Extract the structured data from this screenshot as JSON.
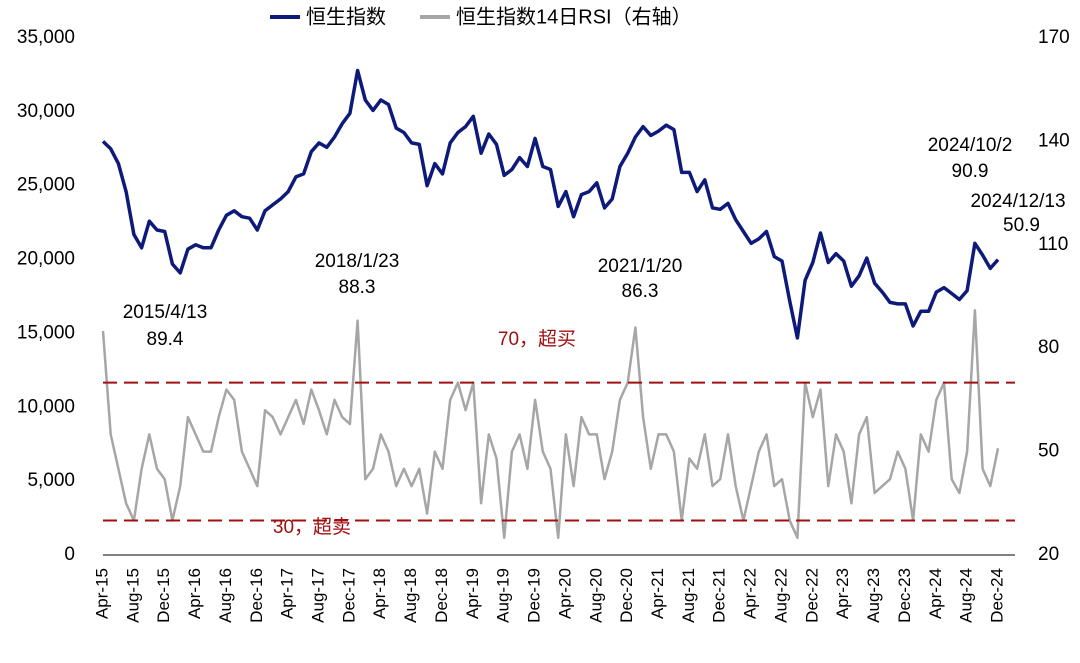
{
  "chart_data": {
    "type": "line",
    "categories": [
      "Apr-15",
      null,
      null,
      null,
      "Aug-15",
      null,
      null,
      null,
      "Dec-15",
      null,
      null,
      null,
      "Apr-16",
      null,
      null,
      null,
      "Aug-16",
      null,
      null,
      null,
      "Dec-16",
      null,
      null,
      null,
      "Apr-17",
      null,
      null,
      null,
      "Aug-17",
      null,
      null,
      null,
      "Dec-17",
      null,
      null,
      null,
      "Apr-18",
      null,
      null,
      null,
      "Aug-18",
      null,
      null,
      null,
      "Dec-18",
      null,
      null,
      null,
      "Apr-19",
      null,
      null,
      null,
      "Aug-19",
      null,
      null,
      null,
      "Dec-19",
      null,
      null,
      null,
      "Apr-20",
      null,
      null,
      null,
      "Aug-20",
      null,
      null,
      null,
      "Dec-20",
      null,
      null,
      null,
      "Apr-21",
      null,
      null,
      null,
      "Aug-21",
      null,
      null,
      null,
      "Dec-21",
      null,
      null,
      null,
      "Apr-22",
      null,
      null,
      null,
      "Aug-22",
      null,
      null,
      null,
      "Dec-22",
      null,
      null,
      null,
      "Apr-23",
      null,
      null,
      null,
      "Aug-23",
      null,
      null,
      null,
      "Dec-23",
      null,
      null,
      null,
      "Apr-24",
      null,
      null,
      null,
      "Aug-24",
      null,
      null,
      null,
      "Dec-24"
    ],
    "series": [
      {
        "name": "恒生指数14日RSI（右轴）",
        "color": "#a6a6a6",
        "axis": "y2",
        "values": [
          85,
          55,
          45,
          35,
          30,
          45,
          55,
          45,
          42,
          30,
          40,
          60,
          55,
          50,
          50,
          60,
          68,
          65,
          50,
          45,
          40,
          62,
          60,
          55,
          60,
          65,
          58,
          68,
          62,
          55,
          65,
          60,
          58,
          88,
          42,
          45,
          55,
          50,
          40,
          45,
          40,
          45,
          32,
          50,
          45,
          65,
          70,
          62,
          70,
          35,
          55,
          48,
          25,
          50,
          55,
          45,
          65,
          50,
          45,
          25,
          55,
          40,
          60,
          55,
          55,
          42,
          50,
          65,
          70,
          86,
          60,
          45,
          55,
          55,
          50,
          30,
          48,
          45,
          55,
          40,
          42,
          55,
          40,
          30,
          40,
          50,
          55,
          40,
          42,
          30,
          25,
          70,
          60,
          68,
          40,
          55,
          50,
          35,
          55,
          60,
          38,
          40,
          42,
          50,
          45,
          30,
          55,
          50,
          65,
          70,
          42,
          38,
          50,
          91,
          45,
          40,
          51
        ]
      },
      {
        "name": "恒生指数",
        "color": "#0d1a7a",
        "values": [
          28000,
          27500,
          26500,
          24600,
          21700,
          20800,
          22600,
          22000,
          21900,
          19700,
          19100,
          20700,
          21000,
          20800,
          20800,
          22000,
          23000,
          23300,
          22900,
          22800,
          22000,
          23300,
          23700,
          24100,
          24600,
          25600,
          25800,
          27300,
          27900,
          27600,
          28300,
          29200,
          29900,
          32800,
          30800,
          30100,
          30800,
          30500,
          28900,
          28600,
          27900,
          27800,
          25000,
          26500,
          25800,
          27900,
          28600,
          29000,
          29700,
          27200,
          28500,
          27800,
          25700,
          26100,
          26900,
          26300,
          28200,
          26300,
          26100,
          23600,
          24600,
          22900,
          24400,
          24600,
          25200,
          23500,
          24100,
          26300,
          27200,
          28300,
          29000,
          28400,
          28700,
          29100,
          28800,
          25900,
          25900,
          24600,
          25400,
          23500,
          23400,
          23800,
          22700,
          21900,
          21100,
          21400,
          21900,
          20200,
          19900,
          17200,
          14700,
          18600,
          19800,
          21800,
          19800,
          20400,
          19900,
          18200,
          18900,
          20100,
          18400,
          17800,
          17100,
          17000,
          17000,
          15500,
          16500,
          16500,
          17800,
          18100,
          17700,
          17300,
          17900,
          21100,
          20300,
          19400,
          20000
        ]
      }
    ],
    "ylim": [
      0,
      35000
    ],
    "yticks": [
      0,
      {
        "value": 5000,
        "label": "5,000"
      },
      {
        "value": 10000,
        "label": "10,000"
      },
      {
        "value": 15000,
        "label": "15,000"
      },
      {
        "value": 20000,
        "label": "20,000"
      },
      {
        "value": 25000,
        "label": "25,000"
      },
      {
        "value": 30000,
        "label": "30,000"
      },
      {
        "value": 35000,
        "label": "35,000"
      }
    ],
    "y2lim": [
      20,
      170
    ],
    "y2ticks": [
      20,
      50,
      80,
      110,
      140,
      170
    ],
    "hlines": [
      {
        "value": 70,
        "label": "70，超买",
        "axis": "y2",
        "color": "#a01010"
      },
      {
        "value": 30,
        "label": "30，超卖",
        "axis": "y2",
        "color": "#a01010"
      }
    ],
    "annotations": [
      {
        "label": "2015/4/13",
        "value": 89.4
      },
      {
        "label": "2018/1/23",
        "value": 88.3
      },
      {
        "label": "2021/1/20",
        "value": 86.3
      },
      {
        "label": "2024/10/2",
        "value": 90.9
      },
      {
        "label": "2024/12/13",
        "value": 50.9
      }
    ]
  }
}
